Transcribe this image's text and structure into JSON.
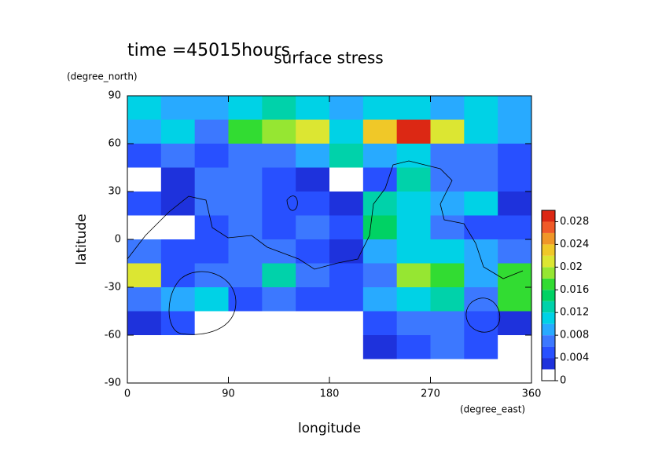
{
  "chart_data": {
    "type": "heatmap",
    "title": "time =45015hours",
    "subtitle": "surface stress",
    "x_label": "longitude",
    "y_label": "latitude",
    "x_unit": "(degree_east)",
    "y_unit": "(degree_north)",
    "xlim": [
      0,
      360
    ],
    "ylim": [
      -90,
      90
    ],
    "xticks": [
      0,
      90,
      180,
      270,
      360
    ],
    "yticks": [
      -90,
      -60,
      -30,
      0,
      30,
      60,
      90
    ],
    "x": [
      15,
      45,
      75,
      105,
      135,
      165,
      195,
      225,
      255,
      285,
      315,
      345
    ],
    "y": [
      82.5,
      67.5,
      52.5,
      37.5,
      22.5,
      7.5,
      -7.5,
      -22.5,
      -37.5,
      -52.5,
      -67.5,
      -82.5
    ],
    "values": [
      [
        0.01,
        0.009,
        0.008,
        0.01,
        0.012,
        0.01,
        0.009,
        0.01,
        0.011,
        0.009,
        0.01,
        0.009
      ],
      [
        0.008,
        0.01,
        0.006,
        0.016,
        0.018,
        0.02,
        0.01,
        0.022,
        0.028,
        0.02,
        0.01,
        0.008
      ],
      [
        0.004,
        0.006,
        0.004,
        0.006,
        0.006,
        0.008,
        0.012,
        0.008,
        0.01,
        0.006,
        0.006,
        0.004
      ],
      [
        0,
        0.002,
        0.006,
        0.006,
        0.004,
        0.002,
        0,
        0.004,
        0.012,
        0.006,
        0.006,
        0.004
      ],
      [
        0.004,
        0.002,
        0.006,
        0.006,
        0.004,
        0.004,
        0.002,
        0.012,
        0.01,
        0.008,
        0.01,
        0.002
      ],
      [
        0,
        0,
        0.004,
        0.006,
        0.004,
        0.006,
        0.004,
        0.014,
        0.01,
        0.006,
        0.004,
        0.004
      ],
      [
        0.006,
        0.004,
        0.004,
        0.006,
        0.006,
        0.004,
        0.002,
        0.008,
        0.01,
        0.01,
        0.008,
        0.006
      ],
      [
        0.02,
        0.004,
        0.006,
        0.006,
        0.012,
        0.006,
        0.004,
        0.006,
        0.018,
        0.016,
        0.008,
        0.016
      ],
      [
        0.006,
        0.008,
        0.01,
        0.004,
        0.006,
        0.004,
        0.004,
        0.008,
        0.01,
        0.012,
        0.006,
        0.016
      ],
      [
        0.002,
        0.004,
        0,
        0,
        0,
        0,
        0,
        0.004,
        0.006,
        0.006,
        0.004,
        0.002
      ],
      [
        0,
        0,
        0,
        0,
        0,
        0,
        0,
        0.002,
        0.004,
        0.006,
        0.004,
        0
      ],
      [
        0,
        0,
        0,
        0,
        0,
        0,
        0,
        0,
        0,
        0,
        0,
        0
      ]
    ],
    "colorbar": {
      "levels": [
        0,
        0.002,
        0.004,
        0.006,
        0.008,
        0.01,
        0.012,
        0.014,
        0.016,
        0.018,
        0.02,
        0.022,
        0.024,
        0.026,
        0.028,
        0.03
      ],
      "colors": [
        "#ffffff",
        "#1e32dc",
        "#2850ff",
        "#3c78ff",
        "#28aaff",
        "#00d2e6",
        "#00d2aa",
        "#00d264",
        "#32dc32",
        "#96e632",
        "#dce632",
        "#f0c828",
        "#f09628",
        "#f05a28",
        "#dc2814"
      ],
      "ticks": [
        0,
        0.004,
        0.008,
        0.012,
        0.016,
        0.02,
        0.024,
        0.028
      ]
    }
  }
}
